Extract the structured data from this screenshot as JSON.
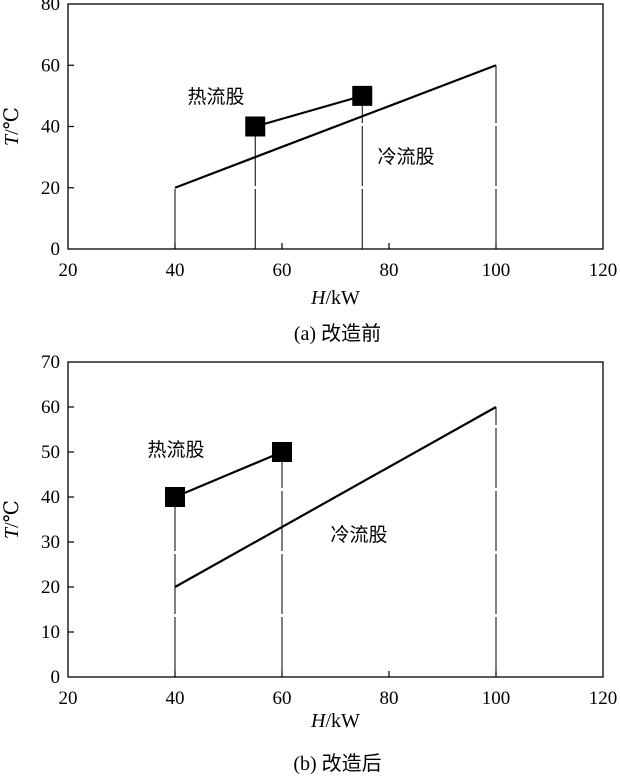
{
  "charts": [
    {
      "caption": "(a) 改造前",
      "xlabel": {
        "var": "H",
        "unit": "/kW"
      },
      "ylabel": {
        "var": "T",
        "unit": "/℃"
      },
      "annotations": {
        "hot": "热流股",
        "cold": "冷流股"
      }
    },
    {
      "caption": "(b) 改造后",
      "xlabel": {
        "var": "H",
        "unit": "/kW"
      },
      "ylabel": {
        "var": "T",
        "unit": "/℃"
      },
      "annotations": {
        "hot": "热流股",
        "cold": "冷流股"
      }
    }
  ],
  "chart_data": [
    {
      "type": "line",
      "xlim": [
        20,
        120
      ],
      "ylim": [
        0,
        80
      ],
      "xticks": [
        20,
        40,
        60,
        80,
        100,
        120
      ],
      "yticks": [
        0,
        20,
        40,
        60,
        80
      ],
      "grid": false,
      "series": [
        {
          "role": "hot",
          "marker": "square",
          "x": [
            55,
            75
          ],
          "y": [
            40,
            50
          ]
        },
        {
          "role": "cold",
          "marker": "none",
          "x": [
            40,
            100
          ],
          "y": [
            20,
            60
          ]
        }
      ],
      "vlines": [
        40,
        55,
        75,
        100
      ]
    },
    {
      "type": "line",
      "xlim": [
        20,
        120
      ],
      "ylim": [
        0,
        70
      ],
      "xticks": [
        20,
        40,
        60,
        80,
        100,
        120
      ],
      "yticks": [
        0,
        10,
        20,
        30,
        40,
        50,
        60,
        70
      ],
      "grid": false,
      "series": [
        {
          "role": "hot",
          "marker": "square",
          "x": [
            40,
            60
          ],
          "y": [
            40,
            50
          ]
        },
        {
          "role": "cold",
          "marker": "none",
          "x": [
            40,
            100
          ],
          "y": [
            20,
            60
          ]
        }
      ],
      "vlines": [
        40,
        60,
        100
      ]
    }
  ]
}
